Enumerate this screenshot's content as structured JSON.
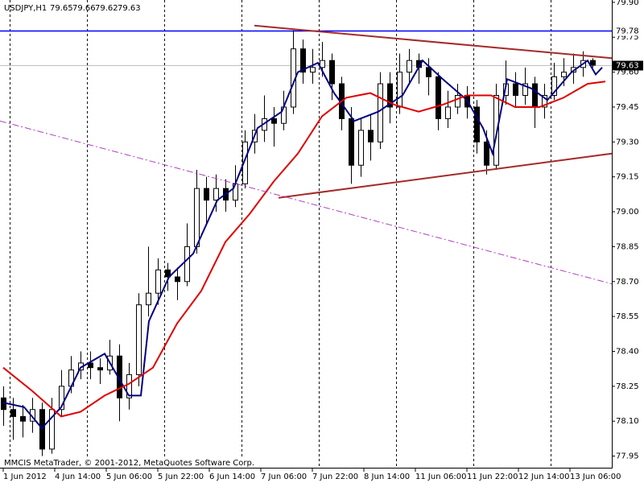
{
  "chart_data": {
    "type": "candlestick",
    "title": "USDJPY,H1",
    "x": [
      0,
      3,
      6,
      9,
      12,
      15,
      18,
      21,
      24,
      27,
      30,
      33,
      36,
      39,
      42,
      45,
      48,
      51,
      54,
      57,
      60,
      63,
      66,
      69,
      72,
      75,
      78,
      81,
      84,
      87,
      90,
      93,
      96,
      99,
      102,
      105,
      108,
      111,
      114,
      117,
      120,
      123,
      126,
      129,
      132,
      135,
      138,
      141,
      144,
      147,
      150,
      153,
      156,
      159,
      162,
      165,
      168,
      171,
      174,
      177,
      180,
      183
    ],
    "open": [
      78.2,
      78.15,
      78.12,
      78.1,
      78.15,
      77.98,
      78.15,
      78.25,
      78.32,
      78.35,
      78.33,
      78.32,
      78.38,
      78.2,
      78.3,
      78.6,
      78.65,
      78.75,
      78.72,
      78.7,
      78.85,
      79.1,
      79.05,
      79.1,
      79.05,
      79.12,
      79.3,
      79.35,
      79.4,
      79.38,
      79.45,
      79.7,
      79.6,
      79.62,
      79.65,
      79.55,
      79.4,
      79.2,
      79.35,
      79.3,
      79.55,
      79.45,
      79.6,
      79.65,
      79.62,
      79.58,
      79.4,
      79.45,
      79.5,
      79.45,
      79.3,
      79.2,
      79.5,
      79.55,
      79.5,
      79.55,
      79.45,
      79.5,
      79.58,
      79.6,
      79.62,
      79.65
    ],
    "high": [
      78.25,
      78.2,
      78.17,
      78.2,
      78.18,
      78.2,
      78.32,
      78.38,
      78.4,
      78.4,
      78.37,
      78.45,
      78.43,
      78.35,
      78.65,
      78.85,
      78.8,
      78.78,
      78.76,
      78.95,
      79.18,
      79.15,
      79.16,
      79.14,
      79.2,
      79.35,
      79.42,
      79.5,
      79.45,
      79.52,
      79.78,
      79.74,
      79.7,
      79.73,
      79.68,
      79.58,
      79.45,
      79.4,
      79.42,
      79.6,
      79.6,
      79.68,
      79.7,
      79.68,
      79.66,
      79.6,
      79.52,
      79.55,
      79.54,
      79.48,
      79.35,
      79.55,
      79.65,
      79.6,
      79.62,
      79.58,
      79.55,
      79.64,
      79.66,
      79.68,
      79.69,
      79.66
    ],
    "low": [
      78.08,
      78.02,
      78.03,
      78.05,
      77.95,
      77.96,
      78.12,
      78.22,
      78.28,
      78.28,
      78.26,
      78.3,
      78.1,
      78.15,
      78.25,
      78.55,
      78.6,
      78.66,
      78.62,
      78.68,
      78.82,
      78.95,
      79.0,
      79.0,
      79.02,
      79.1,
      79.25,
      79.3,
      79.28,
      79.35,
      79.42,
      79.55,
      79.55,
      79.58,
      79.48,
      79.35,
      79.12,
      79.15,
      79.22,
      79.27,
      79.38,
      79.42,
      79.55,
      79.55,
      79.5,
      79.35,
      79.36,
      79.42,
      79.4,
      79.25,
      79.16,
      79.18,
      79.46,
      79.45,
      79.46,
      79.36,
      79.4,
      79.48,
      79.54,
      79.55,
      79.58,
      79.62
    ],
    "close": [
      78.15,
      78.12,
      78.1,
      78.15,
      77.98,
      78.15,
      78.25,
      78.32,
      78.35,
      78.33,
      78.32,
      78.38,
      78.2,
      78.3,
      78.6,
      78.65,
      78.75,
      78.72,
      78.7,
      78.85,
      79.1,
      79.05,
      79.1,
      79.05,
      79.12,
      79.3,
      79.35,
      79.4,
      79.38,
      79.45,
      79.7,
      79.6,
      79.62,
      79.65,
      79.55,
      79.4,
      79.2,
      79.35,
      79.3,
      79.55,
      79.45,
      79.6,
      79.65,
      79.62,
      79.58,
      79.4,
      79.45,
      79.5,
      79.45,
      79.3,
      79.2,
      79.5,
      79.55,
      79.5,
      79.55,
      79.45,
      79.5,
      79.58,
      79.6,
      79.62,
      79.65,
      79.63
    ],
    "lines": [
      {
        "color": "#000080",
        "x": [
          0,
          6.5,
          12,
          18,
          24,
          31.5,
          39,
          42.75,
          45.25,
          51.5,
          59,
          66.5,
          71.5,
          79,
          86.5,
          91.5,
          97.75,
          102.75,
          109,
          116.5,
          124,
          130.25,
          136.5,
          144,
          149,
          152,
          156.5,
          164,
          169,
          176.5,
          181.5,
          184,
          186
        ],
        "values": [
          78.18,
          78.16,
          78.07,
          78.16,
          78.33,
          78.39,
          78.21,
          78.21,
          78.53,
          78.72,
          78.82,
          79.05,
          79.1,
          79.36,
          79.43,
          79.6,
          79.64,
          79.51,
          79.39,
          79.43,
          79.5,
          79.65,
          79.57,
          79.48,
          79.36,
          79.25,
          79.57,
          79.53,
          79.48,
          79.6,
          79.65,
          79.59,
          79.62
        ]
      },
      {
        "color": "#e00000",
        "x": [
          0,
          9,
          18,
          24,
          31.5,
          39,
          46.5,
          54,
          61.5,
          69,
          76.5,
          84,
          91.5,
          99,
          106.5,
          114,
          121.5,
          129,
          136.5,
          144,
          151.5,
          159,
          166.5,
          174,
          181.5,
          187
        ],
        "values": [
          78.33,
          78.23,
          78.12,
          78.14,
          78.21,
          78.26,
          78.33,
          78.52,
          78.66,
          78.87,
          78.99,
          79.13,
          79.25,
          79.41,
          79.49,
          79.51,
          79.46,
          79.43,
          79.46,
          79.5,
          79.5,
          79.45,
          79.45,
          79.49,
          79.55,
          79.56
        ]
      }
    ],
    "trendlines": [
      {
        "color": "#a52a2a",
        "x": [
          78,
          189
        ],
        "values": [
          79.8,
          79.66
        ]
      },
      {
        "color": "#a52a2a",
        "x": [
          85.5,
          189
        ],
        "values": [
          79.06,
          79.25
        ]
      },
      {
        "color": "#b040c0",
        "x": [
          -1,
          189
        ],
        "values": [
          79.39,
          78.69
        ]
      }
    ],
    "hline": {
      "value": 79.78,
      "label": "79.78",
      "color": "#0000ff"
    },
    "separators": [
      2,
      26,
      50,
      74,
      98,
      122,
      146,
      170
    ],
    "xlim": [
      -1,
      189
    ],
    "ylim": [
      77.9,
      79.91
    ],
    "xticks": [
      {
        "value": 0,
        "label": "1 Jun 2012"
      },
      {
        "value": 16,
        "label": "4 Jun 14:00"
      },
      {
        "value": 32,
        "label": "5 Jun 06:00"
      },
      {
        "value": 48,
        "label": "5 Jun 22:00"
      },
      {
        "value": 64,
        "label": "6 Jun 14:00"
      },
      {
        "value": 80,
        "label": "7 Jun 06:00"
      },
      {
        "value": 96,
        "label": "7 Jun 22:00"
      },
      {
        "value": 112,
        "label": "8 Jun 14:00"
      },
      {
        "value": 128,
        "label": "11 Jun 06:00"
      },
      {
        "value": 144,
        "label": "11 Jun 22:00"
      },
      {
        "value": 160,
        "label": "12 Jun 14:00"
      },
      {
        "value": 176,
        "label": "13 Jun 06:00"
      }
    ],
    "yticks": [
      77.95,
      {
        "value": 78.1,
        "label": "78.10"
      },
      78.25,
      {
        "value": 78.4,
        "label": "78.40"
      },
      78.55,
      {
        "value": 78.7,
        "label": "78.70"
      },
      78.85,
      {
        "value": 79,
        "label": "79.00"
      },
      79.15,
      {
        "value": 79.3,
        "label": "79.30"
      },
      79.45,
      {
        "value": 79.6,
        "label": "79.60"
      },
      79.75,
      {
        "value": 79.9,
        "label": "79.90"
      }
    ],
    "footer": "MMCIS MetaTrader, © 2001-2012, MetaQuotes Software Corp."
  }
}
